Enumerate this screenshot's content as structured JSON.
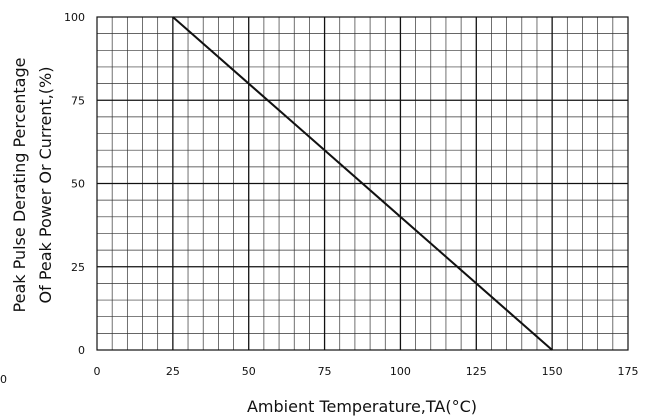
{
  "chart_data": {
    "type": "line",
    "title": "",
    "xlabel": "Ambient Temperature,TA(°C)",
    "ylabel_line1": "Peak Pulse Derating Percentage",
    "ylabel_line2": "Of  Peak Power Or Current,(%)",
    "xlim": [
      0,
      175
    ],
    "ylim": [
      0,
      100
    ],
    "x_ticks": [
      "0",
      "25",
      "50",
      "75",
      "100",
      "125",
      "150",
      "175"
    ],
    "y_ticks": [
      "0",
      "25",
      "50",
      "75",
      "100"
    ],
    "grid": true,
    "minor_grid_per_major_x": 5,
    "minor_grid_per_major_y": 5,
    "legend": "none",
    "series": [
      {
        "x": [
          25,
          150
        ],
        "y": [
          100,
          0
        ],
        "color": "#111111"
      }
    ]
  },
  "stray_label": "0"
}
